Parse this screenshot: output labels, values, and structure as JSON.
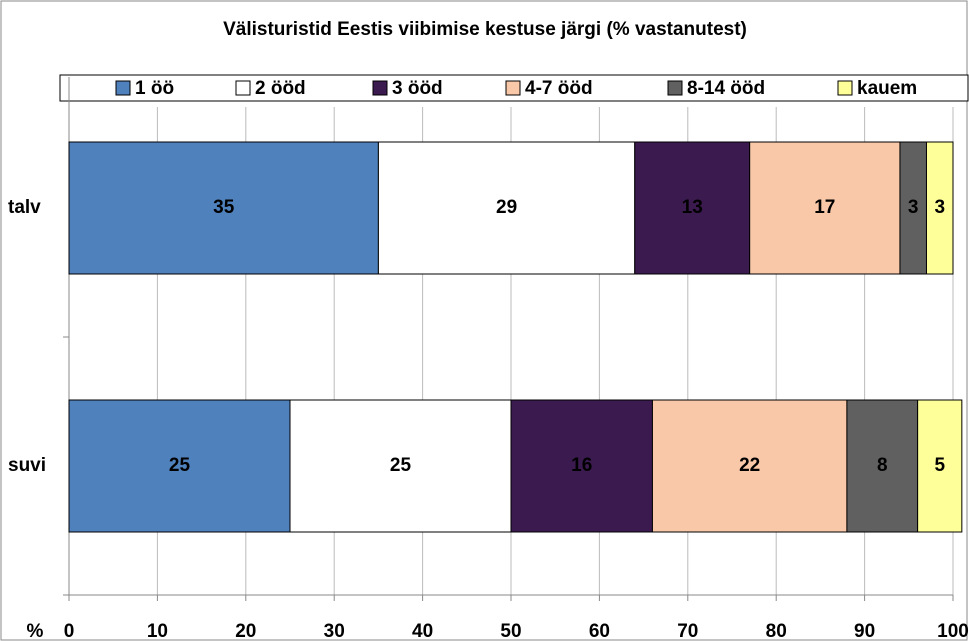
{
  "chart_data": {
    "type": "stacked-barh",
    "title": "Välisturistid Eestis viibimise kestuse järgi (% vastanutest)",
    "xlabel": "%",
    "categories": [
      "talv",
      "suvi"
    ],
    "series": [
      {
        "name": "1 öö",
        "color": "#4f81bd",
        "values": [
          35,
          25
        ]
      },
      {
        "name": "2 ööd",
        "color": "#ffffff",
        "values": [
          29,
          25
        ]
      },
      {
        "name": "3 ööd",
        "color": "#3b1a4f",
        "values": [
          13,
          16
        ]
      },
      {
        "name": "4-7 ööd",
        "color": "#f9c8a8",
        "values": [
          17,
          22
        ]
      },
      {
        "name": "8-14 ööd",
        "color": "#606060",
        "values": [
          3,
          8
        ]
      },
      {
        "name": "kauem",
        "color": "#ffff99",
        "values": [
          3,
          5
        ]
      }
    ],
    "xlim": [
      0,
      100
    ],
    "xticks": [
      0,
      10,
      20,
      30,
      40,
      50,
      60,
      70,
      80,
      90,
      100
    ],
    "grid": true,
    "legend": "top"
  }
}
